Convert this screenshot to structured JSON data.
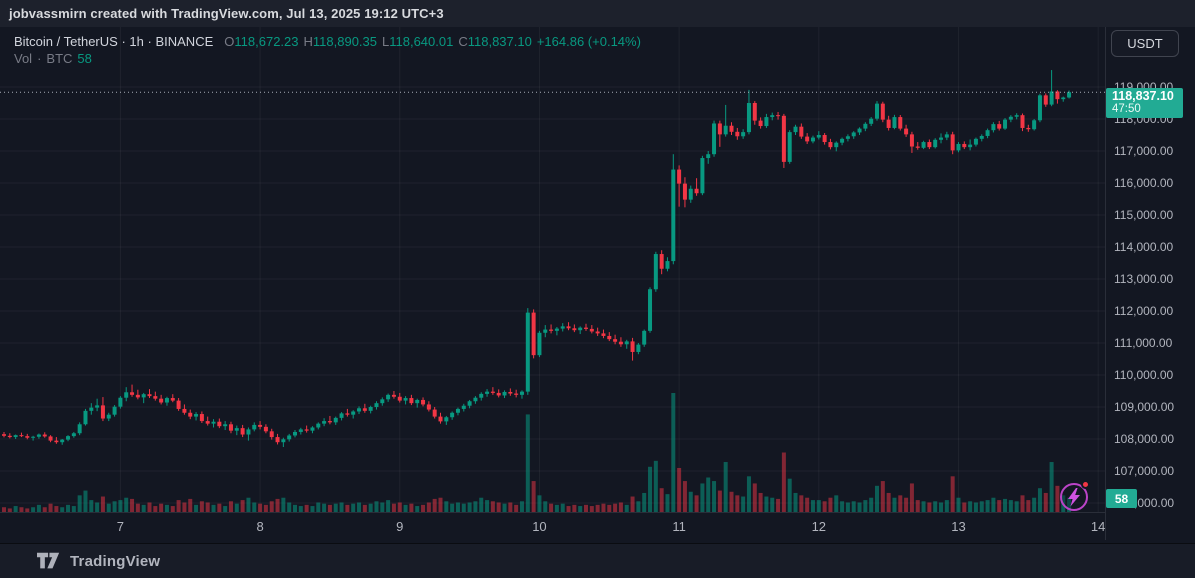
{
  "attribution": {
    "text": "jobvassmirn created with TradingView.com, Jul 13, 2025 19:12 UTC+3"
  },
  "legend": {
    "title": "Bitcoin / TetherUS",
    "sep": "·",
    "interval": "1h",
    "exchange": "BINANCE",
    "o_label": "O",
    "o": "118,672.23",
    "h_label": "H",
    "h": "118,890.35",
    "l_label": "L",
    "l": "118,640.01",
    "c_label": "C",
    "c": "118,837.10",
    "change": "+164.86 (+0.14%)",
    "vol_label": "Vol",
    "vol_sep": "·",
    "vol_asset": "BTC",
    "vol_value": "58"
  },
  "currency_button": {
    "label": "USDT"
  },
  "price_badge": {
    "price": "118,837.10",
    "countdown": "47:50"
  },
  "volume_badge": {
    "value": "58"
  },
  "footer": {
    "brand": "TradingView"
  },
  "colors": {
    "up": "#089981",
    "down": "#f23645",
    "vol_up": "rgba(8,153,129,0.55)",
    "vol_down": "rgba(242,54,69,0.5)",
    "grid": "rgba(255,255,255,0.05)",
    "last_price_line": "#a8aeb8",
    "badge": "#22ab94",
    "axis_text": "#b2b5be",
    "muted_text": "#787b86"
  },
  "chart_data": {
    "type": "candlestick",
    "symbol": "BTCUSDT",
    "exchange": "BINANCE",
    "interval": "1h",
    "title": "Bitcoin / TetherUS · 1h · BINANCE",
    "start": "Jul 6 2025 04:00",
    "end": "Jul 13 2025 19:00 (current bar, countdown 47:50)",
    "last_price": 118837.1,
    "current_bar": {
      "open": 118672.23,
      "high": 118890.35,
      "low": 118640.01,
      "close": 118837.1,
      "volume_btc": 58,
      "change": 164.86,
      "change_pct": 0.14
    },
    "y_axis": {
      "min": 106000,
      "max": 119500,
      "tick_step": 1000
    },
    "y_ticks": [
      "119,000.00",
      "118,000.00",
      "117,000.00",
      "116,000.00",
      "115,000.00",
      "114,000.00",
      "113,000.00",
      "112,000.00",
      "111,000.00",
      "110,000.00",
      "109,000.00",
      "108,000.00",
      "107,000.00",
      "106,000.00"
    ],
    "x_ticks": {
      "labels": [
        "7",
        "8",
        "9",
        "10",
        "11",
        "12",
        "13",
        "14"
      ],
      "candle_indices": [
        20,
        44,
        68,
        92,
        116,
        140,
        164,
        188
      ]
    },
    "volume_unit": "relative height % of volume pane (only last bar labeled: 58 BTC)",
    "candles_format": [
      "open",
      "high",
      "low",
      "close",
      "relative_volume"
    ],
    "candles": [
      [
        108150,
        108220,
        108050,
        108100,
        4
      ],
      [
        108100,
        108180,
        108020,
        108060,
        3
      ],
      [
        108060,
        108140,
        108000,
        108120,
        5
      ],
      [
        108120,
        108200,
        108060,
        108090,
        4
      ],
      [
        108090,
        108160,
        107990,
        108040,
        3
      ],
      [
        108040,
        108100,
        107950,
        108070,
        4
      ],
      [
        108070,
        108170,
        108010,
        108140,
        6
      ],
      [
        108140,
        108210,
        108040,
        108080,
        4
      ],
      [
        108080,
        108120,
        107900,
        107950,
        7
      ],
      [
        107950,
        108060,
        107850,
        107900,
        5
      ],
      [
        107900,
        108000,
        107820,
        107980,
        4
      ],
      [
        107980,
        108120,
        107930,
        108090,
        6
      ],
      [
        108090,
        108220,
        108040,
        108180,
        5
      ],
      [
        108180,
        108520,
        108120,
        108460,
        14
      ],
      [
        108460,
        108940,
        108420,
        108880,
        18
      ],
      [
        108880,
        109120,
        108760,
        108980,
        10
      ],
      [
        108980,
        109260,
        108870,
        109050,
        8
      ],
      [
        109050,
        109310,
        108560,
        108640,
        13
      ],
      [
        108640,
        108820,
        108560,
        108760,
        7
      ],
      [
        108760,
        109060,
        108700,
        109010,
        9
      ],
      [
        109010,
        109340,
        108950,
        109290,
        10
      ],
      [
        109290,
        109620,
        109180,
        109460,
        12
      ],
      [
        109460,
        109700,
        109320,
        109380,
        11
      ],
      [
        109380,
        109540,
        109240,
        109300,
        7
      ],
      [
        109300,
        109440,
        109120,
        109400,
        6
      ],
      [
        109400,
        109560,
        109280,
        109340,
        8
      ],
      [
        109340,
        109480,
        109200,
        109260,
        5
      ],
      [
        109260,
        109380,
        109080,
        109140,
        7
      ],
      [
        109140,
        109320,
        109040,
        109280,
        6
      ],
      [
        109280,
        109400,
        109150,
        109200,
        5
      ],
      [
        109200,
        109280,
        108880,
        108940,
        10
      ],
      [
        108940,
        109080,
        108760,
        108820,
        8
      ],
      [
        108820,
        108920,
        108620,
        108700,
        11
      ],
      [
        108700,
        108840,
        108580,
        108780,
        6
      ],
      [
        108780,
        108860,
        108500,
        108560,
        9
      ],
      [
        108560,
        108700,
        108420,
        108480,
        8
      ],
      [
        108480,
        108620,
        108360,
        108540,
        6
      ],
      [
        108540,
        108640,
        108340,
        108400,
        7
      ],
      [
        108400,
        108560,
        108280,
        108460,
        5
      ],
      [
        108460,
        108540,
        108180,
        108260,
        9
      ],
      [
        108260,
        108420,
        108120,
        108340,
        7
      ],
      [
        108340,
        108440,
        108060,
        108140,
        10
      ],
      [
        108140,
        108360,
        107950,
        108300,
        12
      ],
      [
        108300,
        108520,
        108240,
        108440,
        8
      ],
      [
        108440,
        108560,
        108300,
        108380,
        7
      ],
      [
        108380,
        108460,
        108180,
        108240,
        6
      ],
      [
        108240,
        108320,
        107980,
        108060,
        9
      ],
      [
        108060,
        108160,
        107830,
        107900,
        11
      ],
      [
        107900,
        108040,
        107750,
        107990,
        12
      ],
      [
        107990,
        108160,
        107920,
        108110,
        8
      ],
      [
        108110,
        108280,
        108050,
        108220,
        6
      ],
      [
        108220,
        108350,
        108140,
        108300,
        5
      ],
      [
        108300,
        108420,
        108200,
        108260,
        6
      ],
      [
        108260,
        108400,
        108180,
        108360,
        5
      ],
      [
        108360,
        108520,
        108300,
        108480,
        8
      ],
      [
        108480,
        108650,
        108400,
        108560,
        7
      ],
      [
        108560,
        108720,
        108460,
        108520,
        6
      ],
      [
        108520,
        108700,
        108440,
        108660,
        7
      ],
      [
        108660,
        108840,
        108580,
        108800,
        8
      ],
      [
        108800,
        108940,
        108700,
        108760,
        6
      ],
      [
        108760,
        108900,
        108640,
        108860,
        7
      ],
      [
        108860,
        109020,
        108780,
        108960,
        8
      ],
      [
        108960,
        109100,
        108820,
        108880,
        6
      ],
      [
        108880,
        109040,
        108800,
        109000,
        7
      ],
      [
        109000,
        109180,
        108920,
        109120,
        9
      ],
      [
        109120,
        109300,
        109040,
        109240,
        8
      ],
      [
        109240,
        109420,
        109160,
        109380,
        10
      ],
      [
        109380,
        109500,
        109260,
        109320,
        7
      ],
      [
        109320,
        109440,
        109140,
        109200,
        8
      ],
      [
        109200,
        109340,
        109080,
        109280,
        6
      ],
      [
        109280,
        109380,
        109060,
        109120,
        7
      ],
      [
        109120,
        109260,
        108980,
        109220,
        5
      ],
      [
        109220,
        109300,
        109020,
        109080,
        6
      ],
      [
        109080,
        109180,
        108860,
        108920,
        8
      ],
      [
        108920,
        109000,
        108640,
        108700,
        11
      ],
      [
        108700,
        108820,
        108480,
        108550,
        12
      ],
      [
        108550,
        108720,
        108440,
        108680,
        9
      ],
      [
        108680,
        108860,
        108600,
        108820,
        7
      ],
      [
        108820,
        108980,
        108740,
        108940,
        8
      ],
      [
        108940,
        109100,
        108860,
        109040,
        7
      ],
      [
        109040,
        109220,
        108960,
        109180,
        8
      ],
      [
        109180,
        109340,
        109100,
        109290,
        9
      ],
      [
        109290,
        109460,
        109200,
        109410,
        12
      ],
      [
        109410,
        109560,
        109320,
        109480,
        10
      ],
      [
        109480,
        109620,
        109380,
        109440,
        9
      ],
      [
        109440,
        109550,
        109300,
        109360,
        8
      ],
      [
        109360,
        109520,
        109280,
        109470,
        7
      ],
      [
        109470,
        109580,
        109350,
        109420,
        8
      ],
      [
        109420,
        109540,
        109300,
        109380,
        6
      ],
      [
        109380,
        109520,
        109260,
        109480,
        9
      ],
      [
        109480,
        112090,
        109380,
        111950,
        82
      ],
      [
        111950,
        112050,
        110520,
        110620,
        26
      ],
      [
        110620,
        111380,
        110560,
        111320,
        14
      ],
      [
        111320,
        111560,
        111180,
        111420,
        9
      ],
      [
        111420,
        111580,
        111300,
        111380,
        7
      ],
      [
        111380,
        111500,
        111240,
        111450,
        6
      ],
      [
        111450,
        111620,
        111360,
        111520,
        7
      ],
      [
        111520,
        111650,
        111400,
        111460,
        5
      ],
      [
        111460,
        111580,
        111340,
        111400,
        6
      ],
      [
        111400,
        111520,
        111280,
        111480,
        5
      ],
      [
        111480,
        111600,
        111380,
        111440,
        6
      ],
      [
        111440,
        111560,
        111300,
        111360,
        5
      ],
      [
        111360,
        111480,
        111220,
        111300,
        6
      ],
      [
        111300,
        111420,
        111150,
        111220,
        7
      ],
      [
        111220,
        111340,
        111060,
        111120,
        6
      ],
      [
        111120,
        111260,
        110960,
        111040,
        7
      ],
      [
        111040,
        111180,
        110880,
        110960,
        8
      ],
      [
        110960,
        111100,
        110820,
        111050,
        6
      ],
      [
        111050,
        111160,
        110450,
        110720,
        13
      ],
      [
        110720,
        111000,
        110650,
        110950,
        9
      ],
      [
        110950,
        111420,
        110880,
        111380,
        16
      ],
      [
        111380,
        112740,
        111320,
        112680,
        38
      ],
      [
        112680,
        113850,
        112600,
        113780,
        43
      ],
      [
        113780,
        113900,
        113150,
        113320,
        20
      ],
      [
        113320,
        113680,
        113240,
        113560,
        15
      ],
      [
        113560,
        116900,
        113460,
        116420,
        100
      ],
      [
        116420,
        116550,
        115260,
        115980,
        37
      ],
      [
        115980,
        116180,
        115240,
        115480,
        26
      ],
      [
        115480,
        115920,
        115380,
        115820,
        17
      ],
      [
        115820,
        116150,
        115600,
        115680,
        14
      ],
      [
        115680,
        116850,
        115620,
        116780,
        24
      ],
      [
        116780,
        117000,
        116600,
        116900,
        29
      ],
      [
        116900,
        117950,
        116820,
        117860,
        26
      ],
      [
        117860,
        117950,
        117130,
        117520,
        18
      ],
      [
        117520,
        118440,
        117450,
        117790,
        42
      ],
      [
        117790,
        117900,
        117500,
        117600,
        17
      ],
      [
        117600,
        117720,
        117350,
        117460,
        14
      ],
      [
        117460,
        117680,
        117380,
        117590,
        13
      ],
      [
        117590,
        118910,
        117520,
        118500,
        30
      ],
      [
        118500,
        118560,
        117820,
        117950,
        24
      ],
      [
        117950,
        118050,
        117700,
        117780,
        16
      ],
      [
        117780,
        118160,
        117720,
        118060,
        13
      ],
      [
        118060,
        118200,
        117960,
        118120,
        12
      ],
      [
        118120,
        118220,
        117980,
        118100,
        11
      ],
      [
        118100,
        118160,
        116470,
        116660,
        50
      ],
      [
        116660,
        117650,
        116600,
        117590,
        28
      ],
      [
        117590,
        117820,
        117500,
        117760,
        16
      ],
      [
        117760,
        117860,
        117380,
        117450,
        14
      ],
      [
        117450,
        117560,
        117220,
        117300,
        12
      ],
      [
        117300,
        117480,
        117240,
        117420,
        10
      ],
      [
        117420,
        117620,
        117360,
        117500,
        10
      ],
      [
        117500,
        117560,
        117200,
        117280,
        9
      ],
      [
        117280,
        117380,
        117050,
        117120,
        12
      ],
      [
        117120,
        117300,
        116990,
        117260,
        14
      ],
      [
        117260,
        117420,
        117180,
        117380,
        9
      ],
      [
        117380,
        117520,
        117300,
        117460,
        8
      ],
      [
        117460,
        117620,
        117380,
        117580,
        9
      ],
      [
        117580,
        117740,
        117500,
        117700,
        8
      ],
      [
        117700,
        117900,
        117620,
        117850,
        10
      ],
      [
        117850,
        118060,
        117780,
        118010,
        12
      ],
      [
        118010,
        118560,
        117950,
        118480,
        22
      ],
      [
        118480,
        118540,
        117900,
        117980,
        26
      ],
      [
        117980,
        118100,
        117640,
        117720,
        16
      ],
      [
        117720,
        118130,
        117680,
        118060,
        12
      ],
      [
        118060,
        118125,
        117640,
        117700,
        14
      ],
      [
        117700,
        117820,
        117440,
        117520,
        12
      ],
      [
        117520,
        117600,
        116940,
        117140,
        24
      ],
      [
        117140,
        117280,
        117040,
        117100,
        10
      ],
      [
        117100,
        117320,
        117060,
        117280,
        9
      ],
      [
        117280,
        117360,
        117060,
        117120,
        8
      ],
      [
        117120,
        117400,
        117080,
        117350,
        9
      ],
      [
        117350,
        117550,
        117240,
        117420,
        8
      ],
      [
        117420,
        117600,
        117340,
        117520,
        10
      ],
      [
        117520,
        117600,
        116900,
        117020,
        30
      ],
      [
        117020,
        117280,
        116960,
        117220,
        12
      ],
      [
        117220,
        117300,
        117060,
        117120,
        8
      ],
      [
        117120,
        117360,
        117020,
        117200,
        9
      ],
      [
        117200,
        117420,
        117140,
        117380,
        8
      ],
      [
        117380,
        117520,
        117300,
        117470,
        9
      ],
      [
        117470,
        117700,
        117400,
        117650,
        10
      ],
      [
        117650,
        117900,
        117580,
        117840,
        12
      ],
      [
        117840,
        117940,
        117640,
        117700,
        10
      ],
      [
        117700,
        118030,
        117660,
        117980,
        11
      ],
      [
        117980,
        118120,
        117900,
        118070,
        10
      ],
      [
        118070,
        118180,
        117990,
        118120,
        9
      ],
      [
        118120,
        118170,
        117620,
        117720,
        14
      ],
      [
        117720,
        117820,
        117600,
        117680,
        10
      ],
      [
        117680,
        118000,
        117640,
        117960,
        12
      ],
      [
        117960,
        118790,
        117900,
        118740,
        20
      ],
      [
        118740,
        118800,
        118380,
        118450,
        16
      ],
      [
        118450,
        119530,
        118400,
        118860,
        42
      ],
      [
        118860,
        118900,
        118480,
        118620,
        22
      ],
      [
        118620,
        118700,
        118540,
        118672,
        14
      ],
      [
        118672.23,
        118890.35,
        118640.01,
        118837.1,
        12
      ]
    ]
  }
}
